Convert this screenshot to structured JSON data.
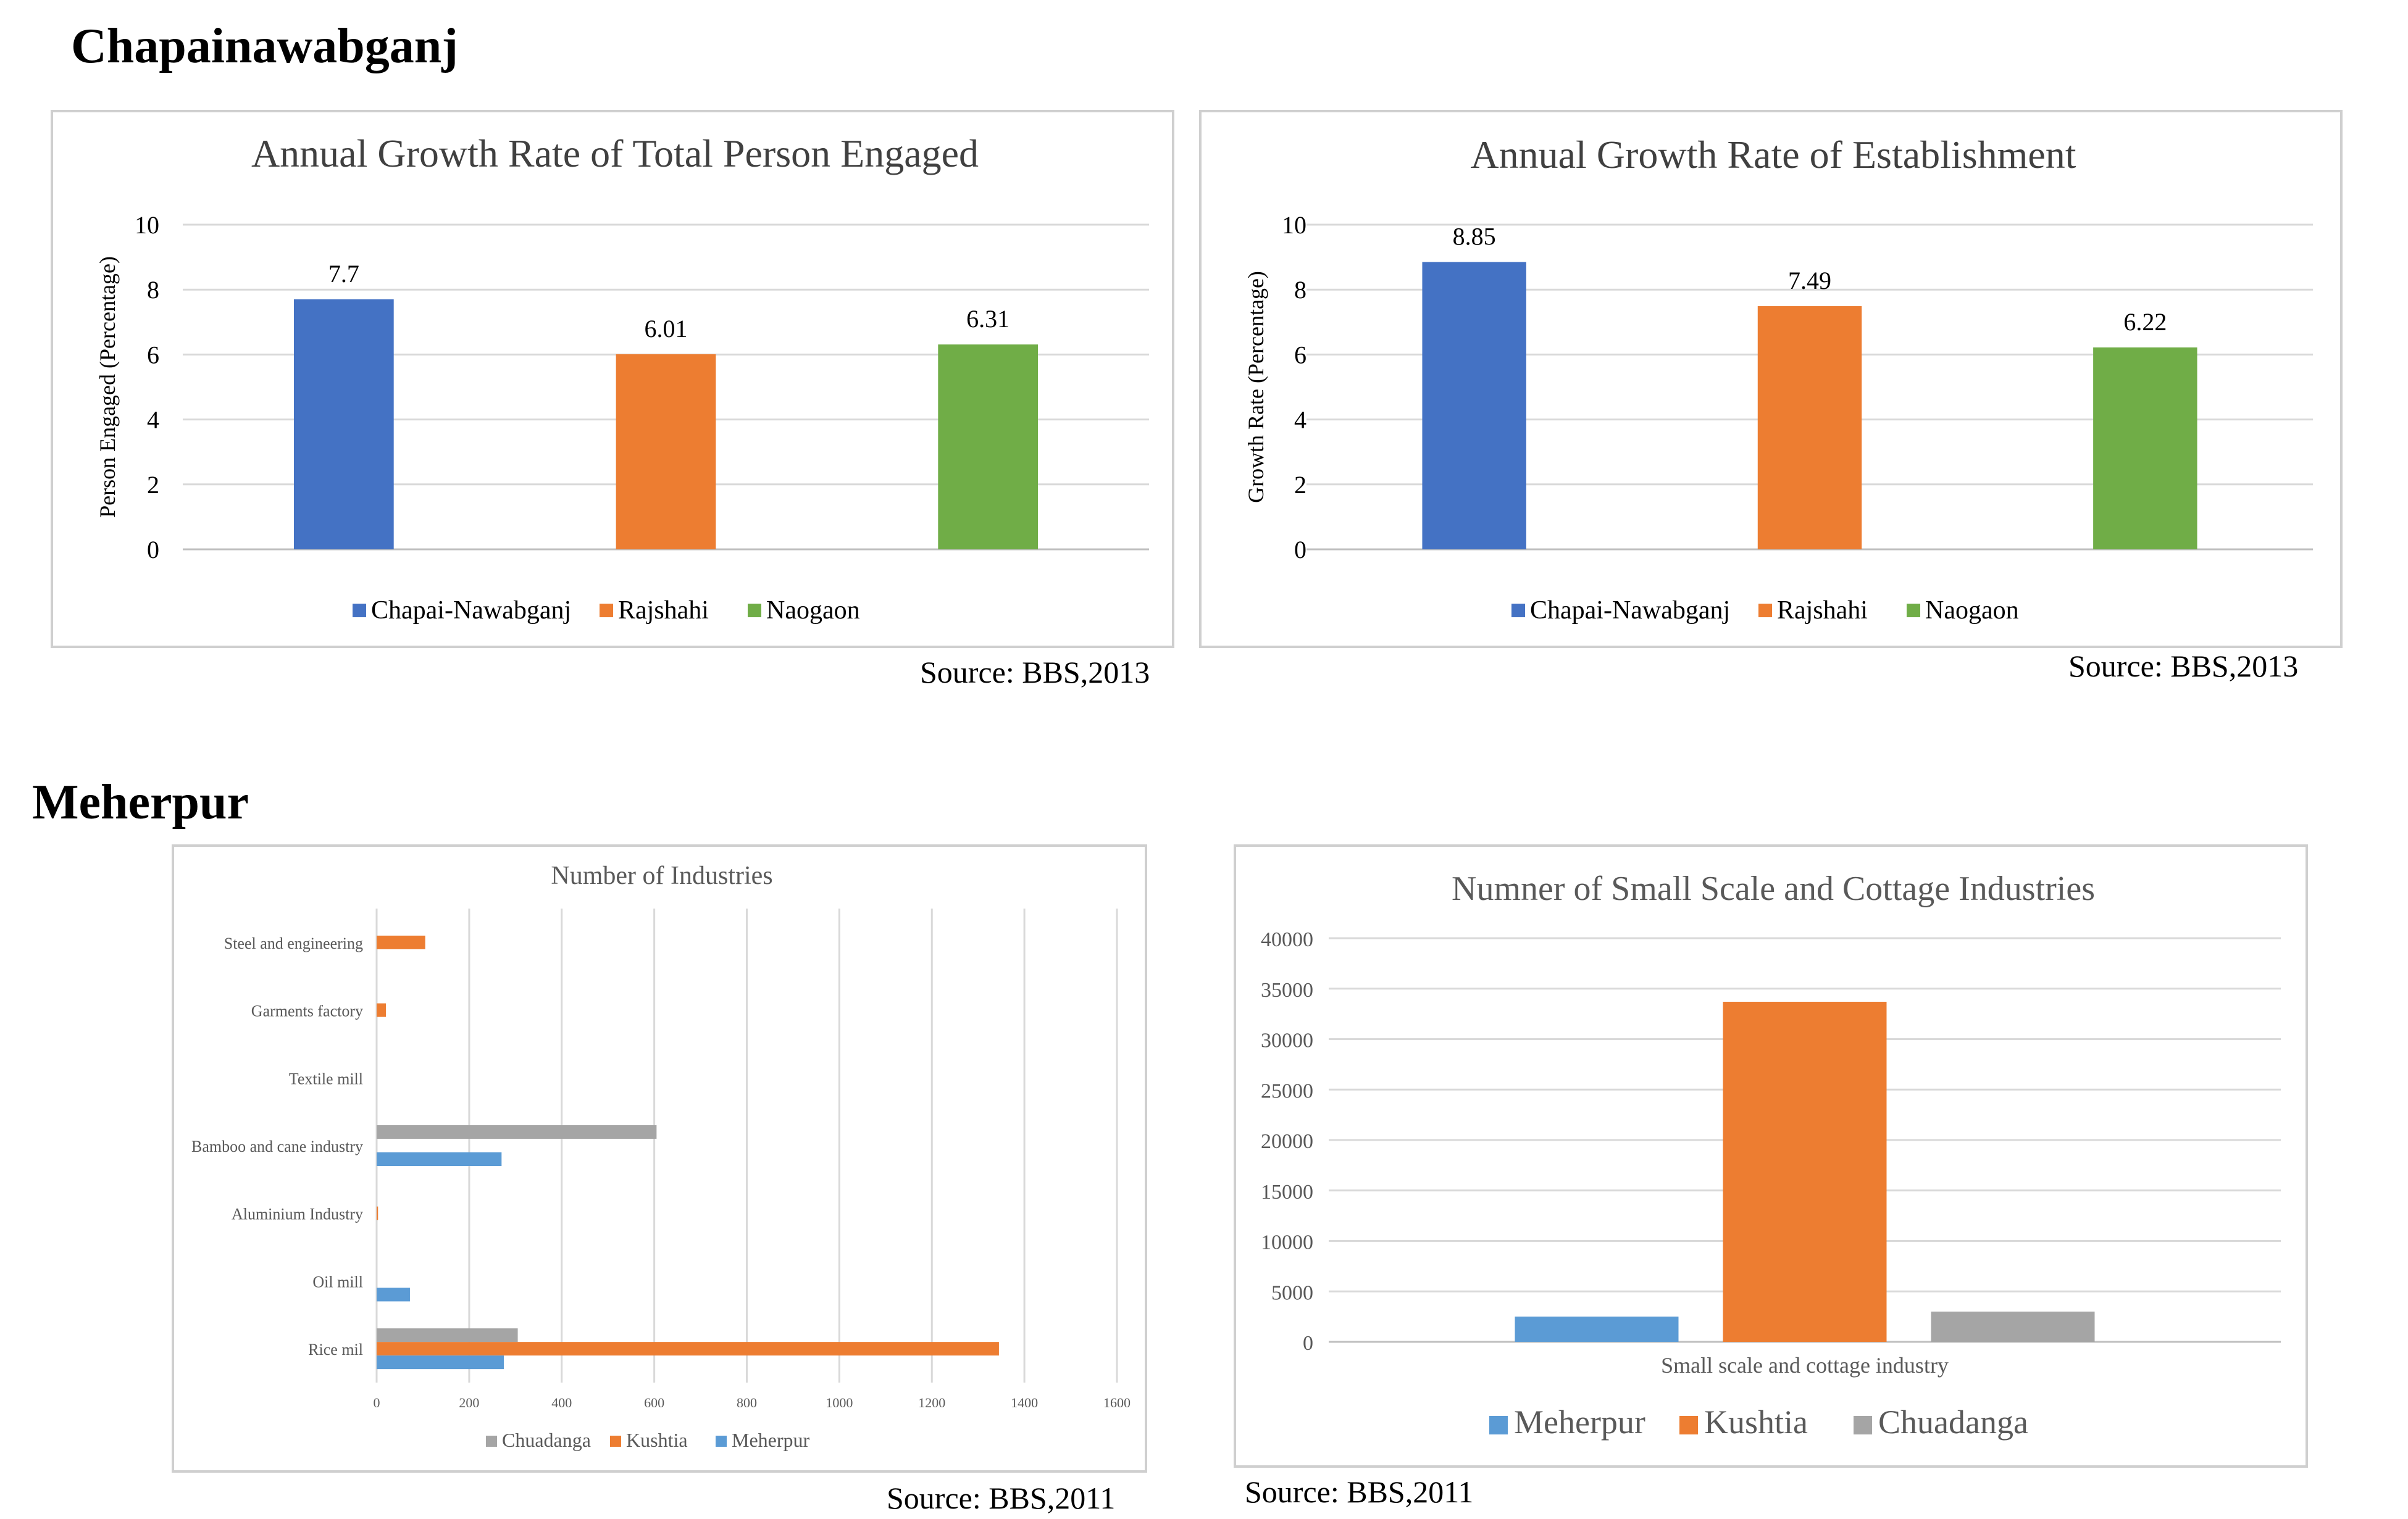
{
  "sections": {
    "top_title": "Chapainawabganj",
    "bottom_title": "Meherpur"
  },
  "sources": {
    "chart1": "Source: BBS,2013",
    "chart2": "Source: BBS,2013",
    "chart3": "Source: BBS,2011",
    "chart4": "Source: BBS,2011"
  },
  "colors": {
    "blue": "#4472C4",
    "orange": "#ED7D31",
    "green": "#70AD47",
    "gray": "#A5A5A5",
    "light_blue": "#5B9BD5",
    "grid": "#D9D9D9"
  },
  "chart_data": [
    {
      "type": "bar",
      "title": "Annual Growth Rate of Total Person Engaged",
      "ylabel": "Person Engaged (Percentage)",
      "xlabel": "",
      "ylim": [
        0,
        10
      ],
      "yticks": [
        "0",
        "2",
        "4",
        "6",
        "8",
        "10"
      ],
      "grid": true,
      "legend_placement": "bottom",
      "series": [
        {
          "name": "Chapai-Nawabganj",
          "value": 7.7,
          "label": "7.7",
          "color": "#4472C4"
        },
        {
          "name": "Rajshahi",
          "value": 6.01,
          "label": "6.01",
          "color": "#ED7D31"
        },
        {
          "name": "Naogaon",
          "value": 6.31,
          "label": "6.31",
          "color": "#70AD47"
        }
      ]
    },
    {
      "type": "bar",
      "title": "Annual Growth Rate of Establishment",
      "ylabel": "Growth Rate (Percentage)",
      "xlabel": "",
      "ylim": [
        0,
        10
      ],
      "yticks": [
        "0",
        "2",
        "4",
        "6",
        "8",
        "10"
      ],
      "grid": true,
      "legend_placement": "bottom",
      "series": [
        {
          "name": "Chapai-Nawabganj",
          "value": 8.85,
          "label": "8.85",
          "color": "#4472C4"
        },
        {
          "name": "Rajshahi",
          "value": 7.49,
          "label": "7.49",
          "color": "#ED7D31"
        },
        {
          "name": "Naogaon",
          "value": 6.22,
          "label": "6.22",
          "color": "#70AD47"
        }
      ]
    },
    {
      "type": "bar",
      "orientation": "horizontal",
      "title": "Number of Industries",
      "xlim": [
        0,
        1600
      ],
      "xticks": [
        "0",
        "200",
        "400",
        "600",
        "800",
        "1000",
        "1200",
        "1400",
        "1600"
      ],
      "grid": true,
      "legend_placement": "bottom",
      "categories": [
        "Steel and engineering",
        "Garments factory",
        "Textile mill",
        "Bamboo and cane industry",
        "Aluminium Industry",
        "Oil mill",
        "Rice mil"
      ],
      "series": [
        {
          "name": "Chuadanga",
          "color": "#A5A5A5",
          "values": [
            0,
            0,
            0,
            605,
            0,
            0,
            305
          ]
        },
        {
          "name": "Kushtia",
          "color": "#ED7D31",
          "values": [
            105,
            20,
            0,
            0,
            3,
            0,
            1345
          ]
        },
        {
          "name": "Meherpur",
          "color": "#5B9BD5",
          "values": [
            0,
            0,
            0,
            270,
            0,
            72,
            275
          ]
        }
      ]
    },
    {
      "type": "bar",
      "title": "Numner of Small Scale and Cottage Industries",
      "xlabel": "Small scale and cottage industry",
      "ylim": [
        0,
        40000
      ],
      "yticks": [
        "0",
        "5000",
        "10000",
        "15000",
        "20000",
        "25000",
        "30000",
        "35000",
        "40000"
      ],
      "grid": true,
      "legend_placement": "bottom",
      "series": [
        {
          "name": "Meherpur",
          "value": 2500,
          "color": "#5B9BD5"
        },
        {
          "name": "Kushtia",
          "value": 33700,
          "color": "#ED7D31"
        },
        {
          "name": "Chuadanga",
          "value": 3000,
          "color": "#A5A5A5"
        }
      ]
    }
  ]
}
